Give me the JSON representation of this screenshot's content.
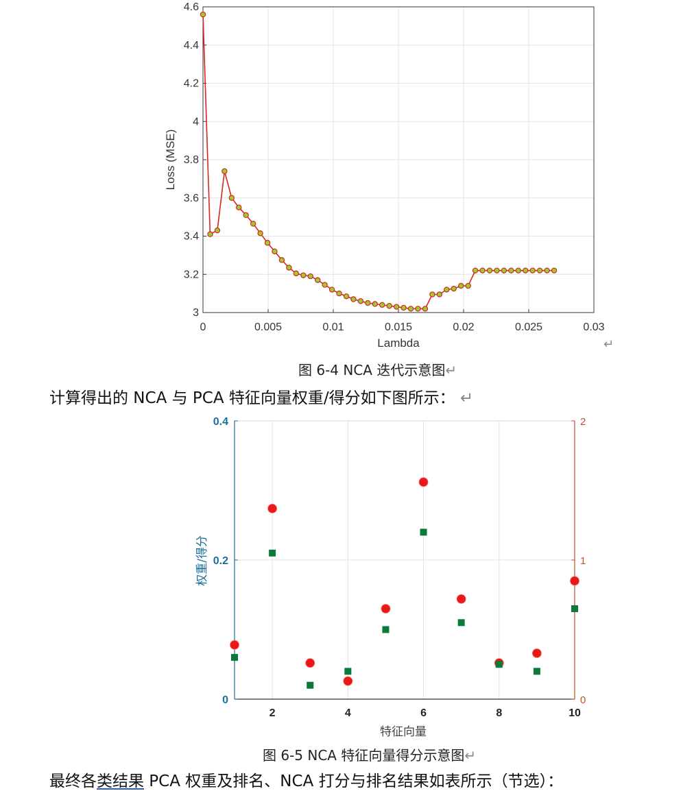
{
  "chart_data": [
    {
      "type": "line",
      "xlabel": "Lambda",
      "ylabel": "Loss (MSE)",
      "xlim": [
        0,
        0.03
      ],
      "ylim": [
        3,
        4.6
      ],
      "xticks": [
        "0",
        "0.005",
        "0.01",
        "0.015",
        "0.02",
        "0.025",
        "0.03"
      ],
      "yticks": [
        "3",
        "3.2",
        "3.4",
        "3.6",
        "3.8",
        "4",
        "4.2",
        "4.4",
        "4.6"
      ],
      "grid": true,
      "line_color": "#d7261e",
      "marker_color": "#9acd32",
      "x": [
        0,
        0.00055,
        0.0011,
        0.00165,
        0.0022,
        0.00275,
        0.0033,
        0.00385,
        0.0044,
        0.00495,
        0.0055,
        0.00605,
        0.0066,
        0.00715,
        0.0077,
        0.00825,
        0.0088,
        0.00935,
        0.0099,
        0.01045,
        0.011,
        0.01155,
        0.0121,
        0.01265,
        0.0132,
        0.01375,
        0.0143,
        0.01485,
        0.0154,
        0.01595,
        0.0165,
        0.01705,
        0.0176,
        0.01815,
        0.0187,
        0.01925,
        0.0198,
        0.02035,
        0.0209,
        0.02145,
        0.022,
        0.02255,
        0.0231,
        0.02365,
        0.0242,
        0.02475,
        0.0253,
        0.02585,
        0.0264,
        0.02695
      ],
      "y": [
        4.56,
        3.41,
        3.43,
        3.74,
        3.6,
        3.55,
        3.51,
        3.465,
        3.415,
        3.365,
        3.32,
        3.275,
        3.235,
        3.205,
        3.195,
        3.19,
        3.17,
        3.145,
        3.12,
        3.1,
        3.085,
        3.07,
        3.06,
        3.05,
        3.045,
        3.04,
        3.035,
        3.03,
        3.025,
        3.02,
        3.02,
        3.02,
        3.095,
        3.095,
        3.12,
        3.125,
        3.14,
        3.14,
        3.22,
        3.22,
        3.22,
        3.22,
        3.22,
        3.22,
        3.22,
        3.22,
        3.22,
        3.22,
        3.22,
        3.22
      ]
    },
    {
      "type": "scatter",
      "xlabel": "特征向量",
      "ylabel_left": "权重/得分",
      "xlim": [
        1,
        10
      ],
      "ylim_left": [
        0,
        0.4
      ],
      "ylim_right": [
        0,
        2
      ],
      "xticks": [
        "2",
        "4",
        "6",
        "8",
        "10"
      ],
      "yticks_left": [
        "0",
        "0.2",
        "0.4"
      ],
      "yticks_right": [
        "0",
        "1",
        "2"
      ],
      "grid": true,
      "left_axis_color": "#1a6e9e",
      "right_axis_color": "#c0522a",
      "series": [
        {
          "axis": "left",
          "marker": "square",
          "color": "#0a7a3a",
          "x": [
            1,
            2,
            3,
            4,
            5,
            6,
            7,
            8,
            9,
            10
          ],
          "y": [
            0.06,
            0.21,
            0.02,
            0.04,
            0.1,
            0.24,
            0.11,
            0.05,
            0.04,
            0.13
          ]
        },
        {
          "axis": "right",
          "marker": "circle",
          "color": "#e8191a",
          "x": [
            1,
            2,
            3,
            4,
            5,
            6,
            7,
            8,
            9,
            10
          ],
          "y": [
            0.39,
            1.37,
            0.26,
            0.13,
            0.65,
            1.56,
            0.72,
            0.26,
            0.33,
            0.85
          ]
        }
      ]
    }
  ],
  "text": {
    "return_mark": "↵",
    "caption1": "图 6-4 NCA 迭代示意图",
    "para1": "计算得出的 NCA 与 PCA 特征向量权重/得分如下图所示：",
    "caption2": "图 6-5 NCA 特征向量得分示意图",
    "para2_a": "最终各",
    "para2_link": "类结果",
    "para2_b": " PCA 权重及排名、NCA 打分与排名结果如表所示（节选）："
  }
}
